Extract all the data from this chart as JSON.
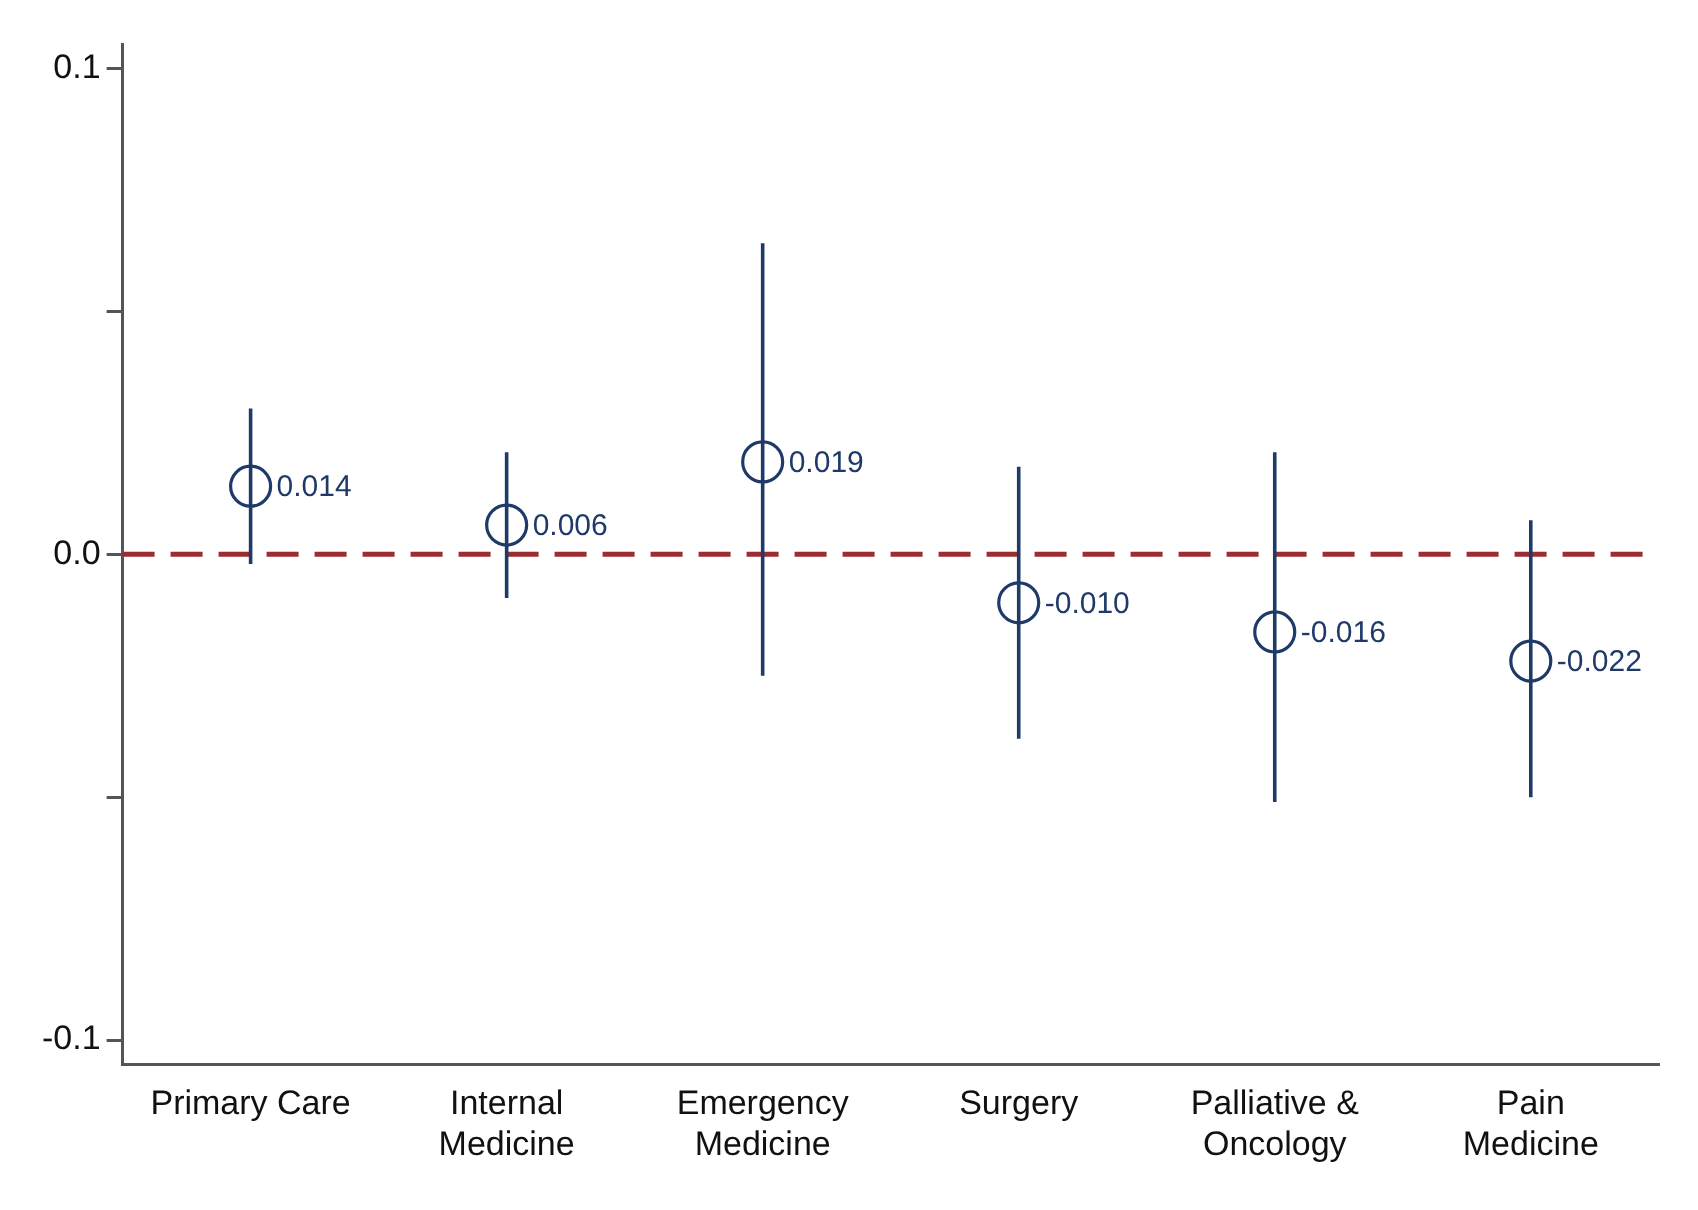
{
  "chart_data": {
    "type": "scatter",
    "categories": [
      "Primary Care",
      "Internal Medicine",
      "Emergency Medicine",
      "Surgery",
      "Palliative & Oncology",
      "Pain Medicine"
    ],
    "series": [
      {
        "color": "#1f3a68",
        "values": [
          0.014,
          0.006,
          0.019,
          -0.01,
          -0.016,
          -0.022
        ],
        "value_labels": [
          "0.014",
          "0.006",
          "0.019",
          "-0.010",
          "-0.016",
          "-0.022"
        ],
        "errors": [
          [
            -0.002,
            0.03
          ],
          [
            -0.009,
            0.021
          ],
          [
            -0.025,
            0.064
          ],
          [
            -0.038,
            0.018
          ],
          [
            -0.051,
            0.021
          ],
          [
            -0.05,
            0.007
          ]
        ]
      }
    ],
    "ylim": [
      -0.105,
      0.105
    ],
    "yticks": [
      0.1,
      {
        "value": 0.05,
        "label": null
      },
      {
        "value": 0,
        "label": "0.0"
      },
      {
        "value": -0.05,
        "label": null
      },
      -0.1
    ],
    "marker": "circle",
    "grid": false,
    "legend": false,
    "ref_lines": [
      {
        "axis": "y",
        "value": 0,
        "color": "#9b2d30",
        "line_style": "dashed"
      }
    ]
  }
}
